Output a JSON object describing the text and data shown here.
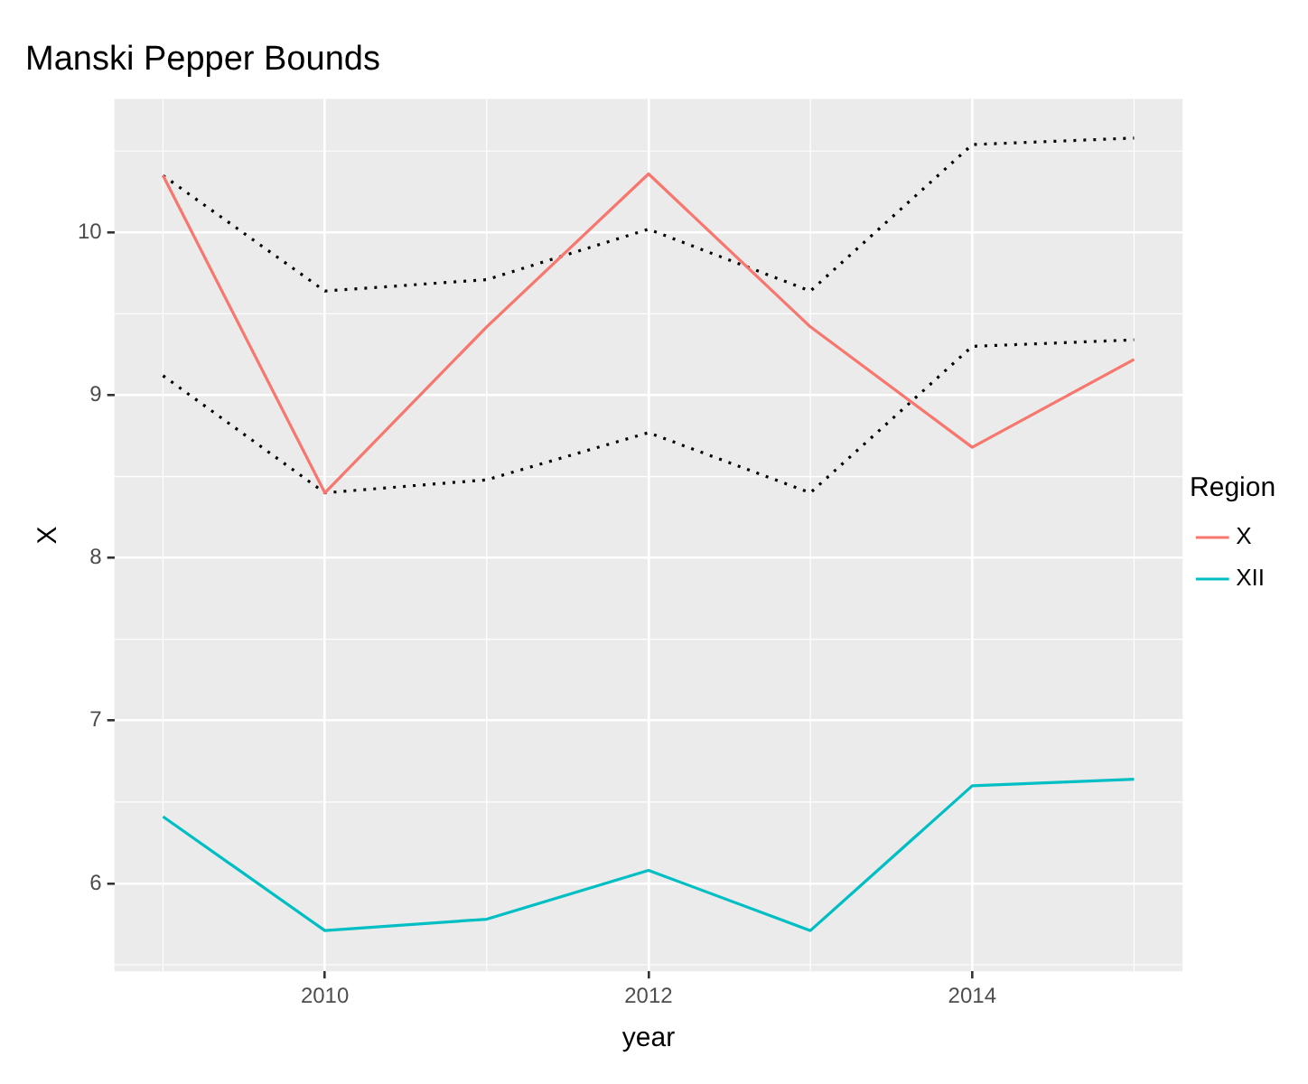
{
  "chart_data": {
    "type": "line",
    "title": "Manski Pepper Bounds",
    "xlabel": "year",
    "ylabel": "X",
    "legend_title": "Region",
    "x": [
      2009,
      2010,
      2011,
      2012,
      2013,
      2014,
      2015
    ],
    "series": [
      {
        "name": "X",
        "color": "#f8766d",
        "values": [
          10.35,
          8.4,
          9.42,
          10.36,
          9.42,
          8.68,
          9.22
        ]
      },
      {
        "name": "XII",
        "color": "#00bfc4",
        "values": [
          6.41,
          5.71,
          5.78,
          6.08,
          5.71,
          6.6,
          6.64
        ]
      },
      {
        "color": "#000000",
        "line_style": "dotted",
        "values": [
          10.35,
          9.64,
          9.71,
          10.02,
          9.64,
          10.54,
          10.58
        ]
      },
      {
        "color": "#000000",
        "line_style": "dotted",
        "values": [
          9.12,
          8.4,
          8.48,
          8.77,
          8.4,
          9.3,
          9.34
        ]
      }
    ],
    "xlim": [
      2008.7,
      2015.3
    ],
    "xticks": [
      2010,
      2012,
      2014
    ],
    "ylim": [
      5.46,
      10.82
    ],
    "yticks": [
      6,
      7,
      8,
      9,
      10
    ],
    "grid": true,
    "legend": "right"
  }
}
